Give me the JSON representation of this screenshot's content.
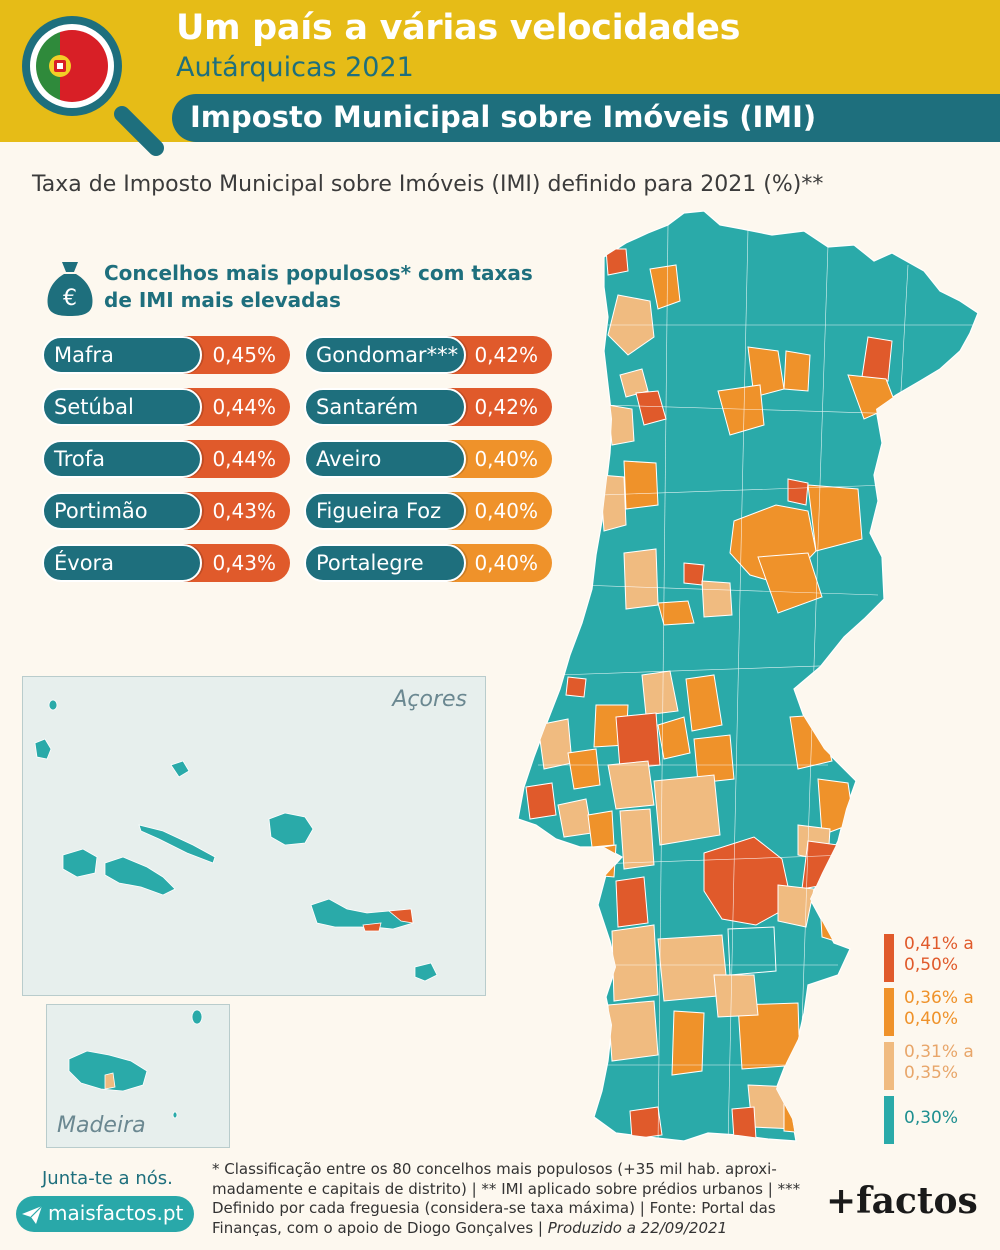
{
  "header": {
    "title": "Um país a várias velocidades",
    "subtitle": "Autárquicas 2021",
    "section": "Imposto Municipal sobre Imóveis (IMI)"
  },
  "map_caption": "Taxa de Imposto Municipal sobre Imóveis (IMI) definido para 2021 (%)**",
  "ranking": {
    "heading": "Concelhos mais populosos* com taxas de IMI mais elevadas",
    "items": [
      {
        "name": "Mafra",
        "value": "0,45%",
        "color": "#e05a2b"
      },
      {
        "name": "Setúbal",
        "value": "0,44%",
        "color": "#e05a2b"
      },
      {
        "name": "Trofa",
        "value": "0,44%",
        "color": "#e05a2b"
      },
      {
        "name": "Portimão",
        "value": "0,43%",
        "color": "#e05a2b"
      },
      {
        "name": "Évora",
        "value": "0,43%",
        "color": "#e05a2b"
      },
      {
        "name": "Gondomar***",
        "value": "0,42%",
        "color": "#e05a2b"
      },
      {
        "name": "Santarém",
        "value": "0,42%",
        "color": "#e05a2b"
      },
      {
        "name": "Aveiro",
        "value": "0,40%",
        "color": "#ef922a"
      },
      {
        "name": "Figueira Foz",
        "value": "0,40%",
        "color": "#ef922a"
      },
      {
        "name": "Portalegre",
        "value": "0,40%",
        "color": "#ef922a"
      }
    ]
  },
  "regions": {
    "acores": "Açores",
    "madeira": "Madeira"
  },
  "legend": [
    {
      "label_line1": "0,41% a",
      "label_line2": "0,50%",
      "color": "#e05a2b"
    },
    {
      "label_line1": "0,36% a",
      "label_line2": "0,40%",
      "color": "#ef922a"
    },
    {
      "label_line1": "0,31% a",
      "label_line2": "0,35%",
      "color": "#f0bb80"
    },
    {
      "label_line1": "0,30%",
      "label_line2": "",
      "color": "#2aaaa9"
    }
  ],
  "footer": {
    "join": "Junta-te a nós.",
    "site": "maisfactos.pt",
    "notes_text": "* Classificação entre os 80 concelhos mais populosos (+35 mil hab. aproxi-madamente e capitais de distrito) | ** IMI aplicado sobre prédios urbanos | *** Definido por cada freguesia (considera-se taxa máxima) | Fonte: Portal das Finanças, com o apoio de Diogo Gonçalves | ",
    "produced": "Produzido a 22/09/2021",
    "brand": "+factos"
  }
}
